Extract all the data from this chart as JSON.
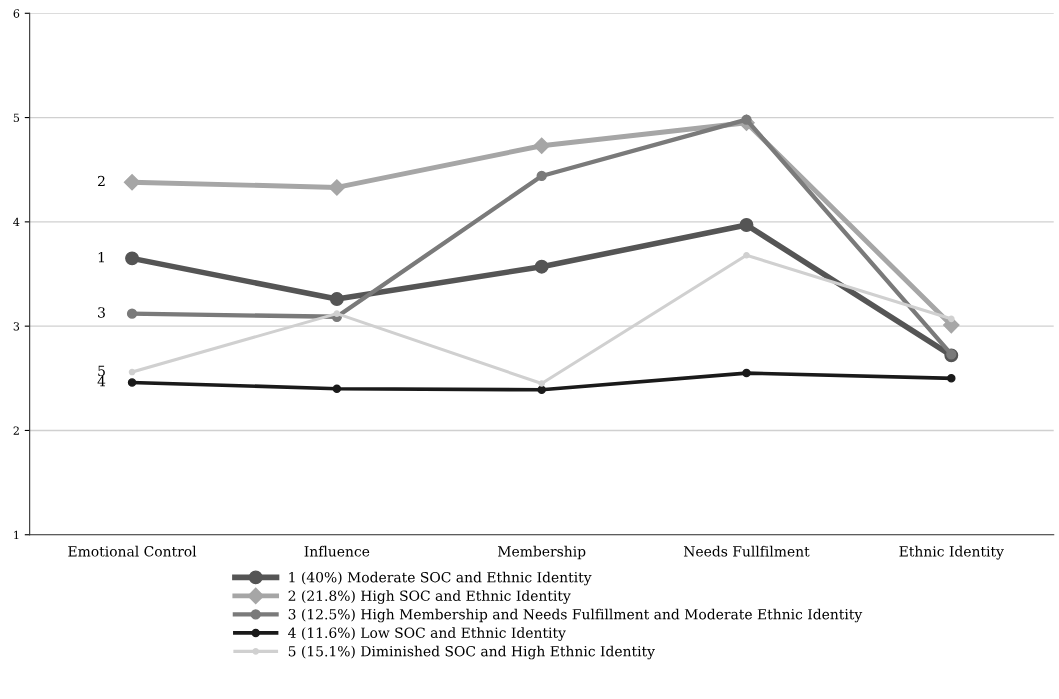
{
  "chart_data": {
    "type": "line",
    "categories": [
      "Emotional Control",
      "Influence",
      "Membership",
      "Needs Fullfilment",
      "Ethnic Identity"
    ],
    "ylim": [
      1,
      6
    ],
    "yticks": [
      1,
      2,
      3,
      4,
      5,
      6
    ],
    "grid": "y",
    "legend": "bottom",
    "series": [
      {
        "name": "1 (40%) Moderate SOC and Ethnic Identity",
        "color": "#555555",
        "marker": "circle",
        "values": [
          3.65,
          3.26,
          3.57,
          3.97,
          2.72
        ]
      },
      {
        "name": "2 (21.8%) High SOC and Ethnic Identity",
        "color": "#a6a6a6",
        "marker": "diamond",
        "values": [
          4.38,
          4.33,
          4.73,
          4.95,
          3.01
        ]
      },
      {
        "name": "3 (12.5%) High Membership and Needs Fulfillment and Moderate Ethnic Identity",
        "color": "#7a7a7a",
        "marker": "circle",
        "values": [
          3.12,
          3.09,
          4.44,
          4.98,
          2.73
        ]
      },
      {
        "name": "4 (11.6%) Low SOC and Ethnic Identity",
        "color": "#1a1a1a",
        "marker": "circle",
        "values": [
          2.46,
          2.4,
          2.39,
          2.55,
          2.5
        ]
      },
      {
        "name": "5 (15.1%) Diminished SOC and High Ethnic Identity",
        "color": "#d0d0d0",
        "marker": "circle",
        "values": [
          2.56,
          3.12,
          2.45,
          3.68,
          3.07
        ]
      }
    ],
    "annotations": [
      {
        "text": "2",
        "x": "Emotional Control",
        "y": 4.38
      },
      {
        "text": "1",
        "x": "Emotional Control",
        "y": 3.65
      },
      {
        "text": "3",
        "x": "Emotional Control",
        "y": 3.12
      },
      {
        "text": "5",
        "x": "Emotional Control",
        "y": 2.56
      },
      {
        "text": "4",
        "x": "Emotional Control",
        "y": 2.46
      }
    ]
  }
}
